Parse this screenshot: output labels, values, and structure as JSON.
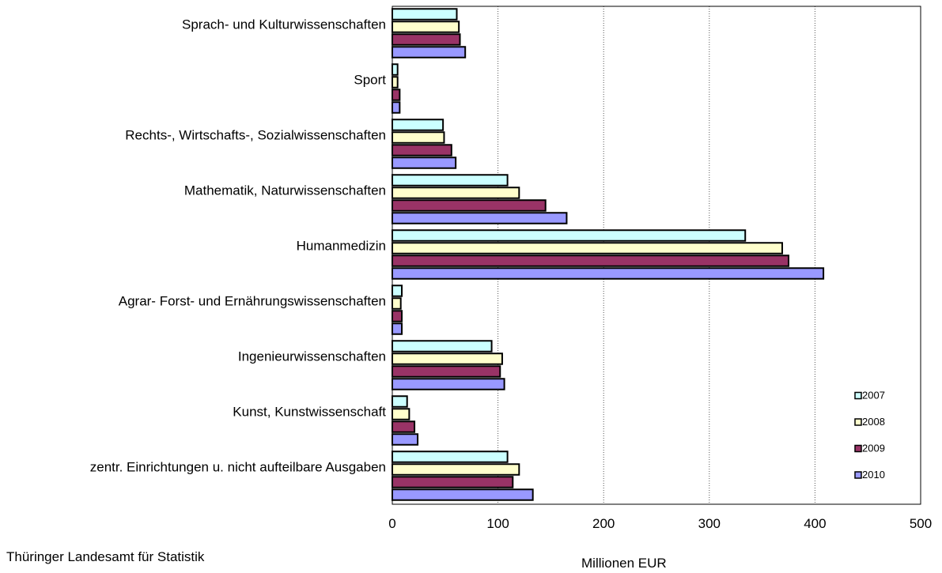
{
  "chart_data": {
    "type": "bar",
    "orientation": "horizontal",
    "categories": [
      "Sprach- und Kulturwissenschaften",
      "Sport",
      "Rechts-, Wirtschafts-, Sozialwissenschaften",
      "Mathematik, Naturwissenschaften",
      "Humanmedizin",
      "Agrar- Forst- und Ernährungswissenschaften",
      "Ingenieurwissenschaften",
      "Kunst, Kunstwissenschaft",
      "zentr. Einrichtungen u. nicht aufteilbare Ausgaben"
    ],
    "series": [
      {
        "name": "2007",
        "color": "#ccffff",
        "values": [
          61,
          5,
          48,
          109,
          334,
          9,
          94,
          14,
          109
        ]
      },
      {
        "name": "2008",
        "color": "#ffffcc",
        "values": [
          63,
          5,
          49,
          120,
          369,
          8,
          104,
          16,
          120
        ]
      },
      {
        "name": "2009",
        "color": "#993366",
        "values": [
          64,
          7,
          56,
          145,
          375,
          9,
          102,
          21,
          114
        ]
      },
      {
        "name": "2010",
        "color": "#9999ff",
        "values": [
          69,
          7,
          60,
          165,
          408,
          9,
          106,
          24,
          133
        ]
      }
    ],
    "xlim": [
      0,
      500
    ],
    "xticks": [
      "0",
      "100",
      "200",
      "300",
      "400",
      "500"
    ],
    "xlabel": "Millionen EUR",
    "grid": "vertical dotted",
    "legend_position": "bottom-right"
  },
  "source": "Thüringer Landesamt für Statistik"
}
